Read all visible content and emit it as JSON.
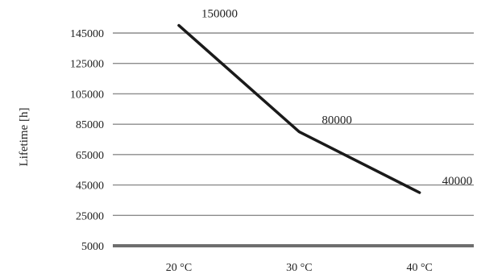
{
  "chart_data": {
    "type": "line",
    "title": "",
    "xlabel": "",
    "ylabel": "Lifetime [h]",
    "categories": [
      "20 °C",
      "30 °C",
      "40 °C"
    ],
    "series": [
      {
        "values": [
          150000,
          80000,
          40000
        ]
      }
    ],
    "data_labels": [
      "150000",
      "80000",
      "40000"
    ],
    "y_ticks": [
      5000,
      25000,
      45000,
      65000,
      85000,
      105000,
      125000,
      145000
    ],
    "ylim": [
      5000,
      145000
    ],
    "grid": true,
    "legend": "none",
    "colors": {
      "line": "#1a1a1a",
      "grid": "#8c8c8c",
      "axis": "#6e6e6e"
    }
  }
}
